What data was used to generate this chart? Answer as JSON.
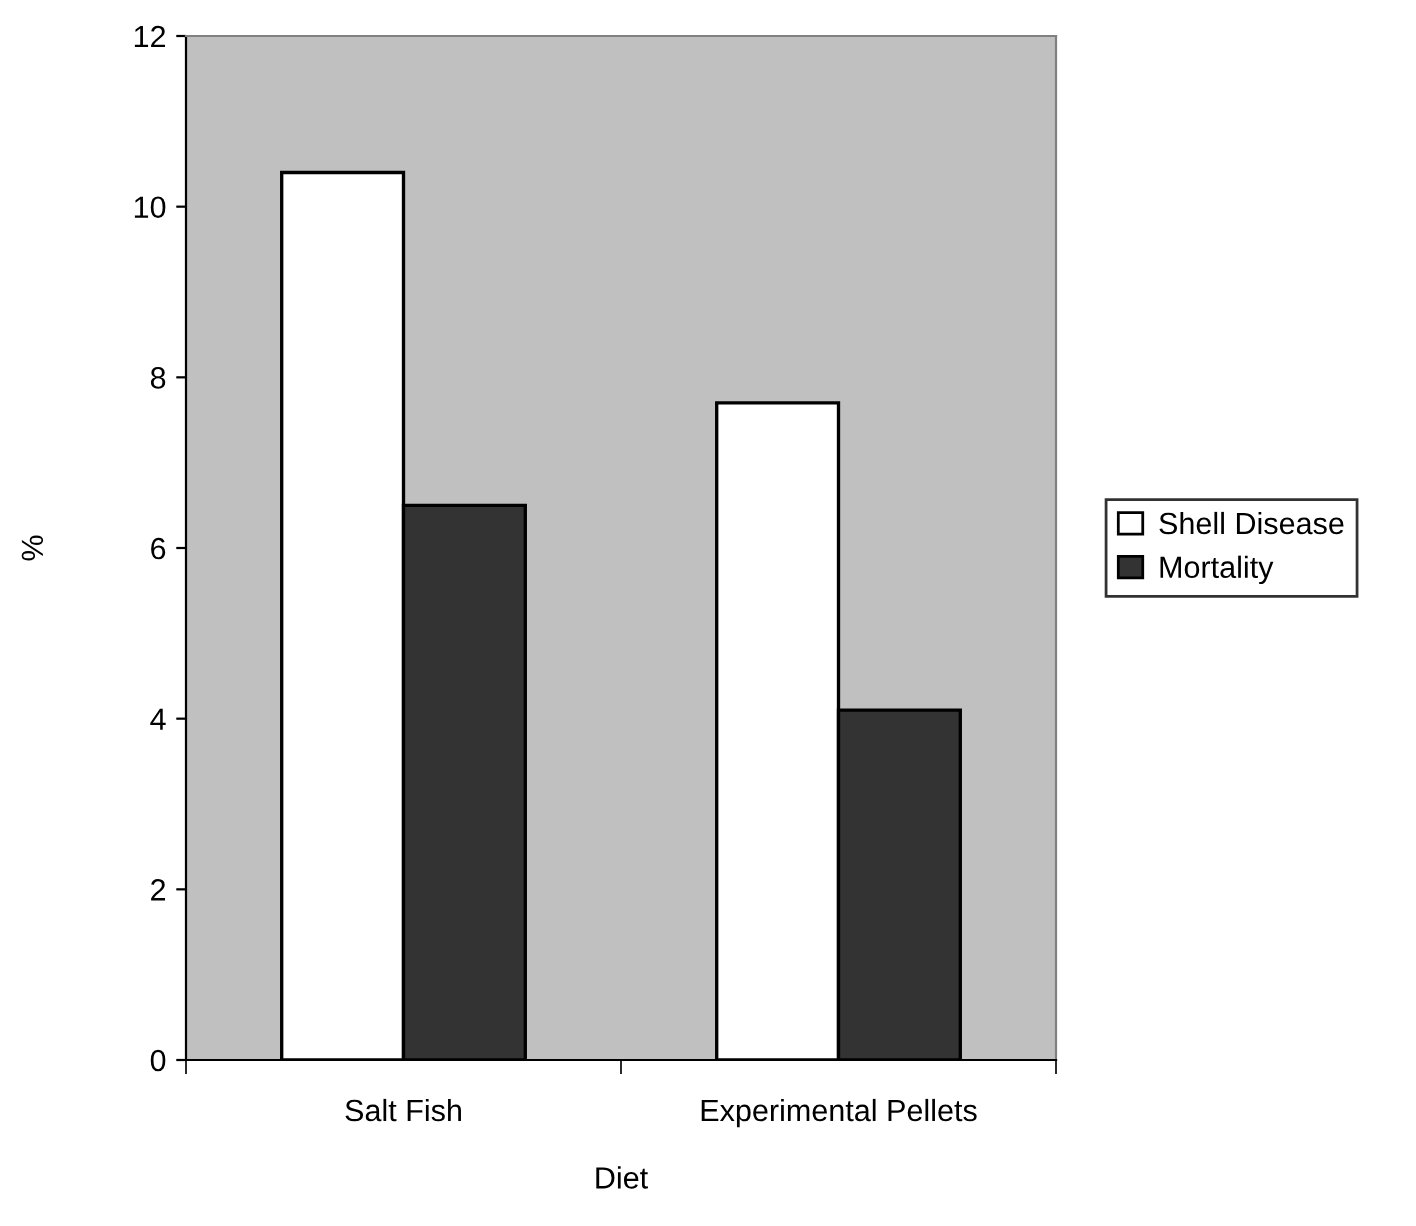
{
  "chart_data": {
    "type": "bar",
    "xlabel": "Diet",
    "ylabel": "%",
    "categories": [
      "Salt Fish",
      "Experimental Pellets"
    ],
    "series": [
      {
        "name": "Shell Disease",
        "color": "#ffffff",
        "values": [
          10.4,
          7.7
        ]
      },
      {
        "name": "Mortality",
        "color": "#333333",
        "values": [
          6.5,
          4.1
        ]
      }
    ],
    "ylim": [
      0,
      12
    ],
    "yticks": [
      0,
      2,
      4,
      6,
      8,
      10,
      12
    ],
    "grid": false,
    "legend": "right"
  }
}
